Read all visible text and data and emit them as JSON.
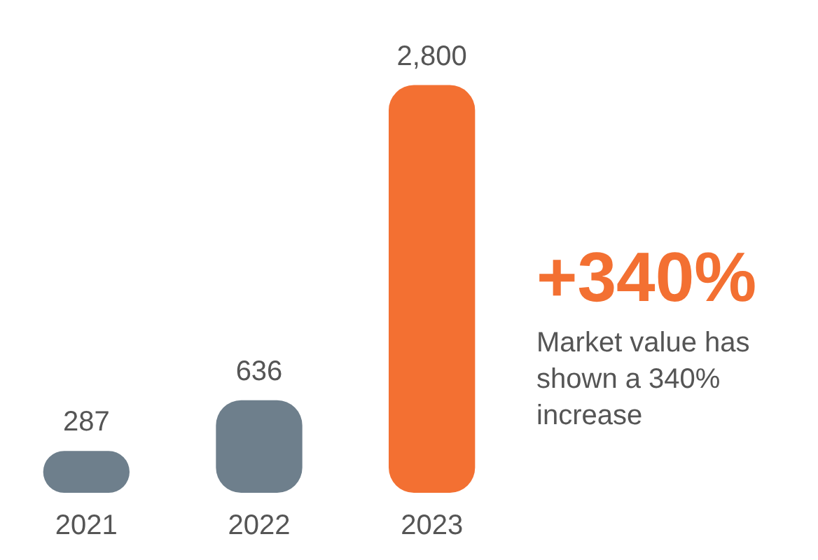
{
  "chart_data": {
    "type": "bar",
    "categories": [
      "2021",
      "2022",
      "2023"
    ],
    "values": [
      287,
      636,
      2800
    ],
    "colors": [
      "#6e7f8c",
      "#6e7f8c",
      "#f37032"
    ],
    "value_labels": [
      "287",
      "636",
      "2,800"
    ],
    "grid": false,
    "legend": false,
    "annotations": [
      "+340%",
      "Market value has shown a 340% increase"
    ]
  }
}
